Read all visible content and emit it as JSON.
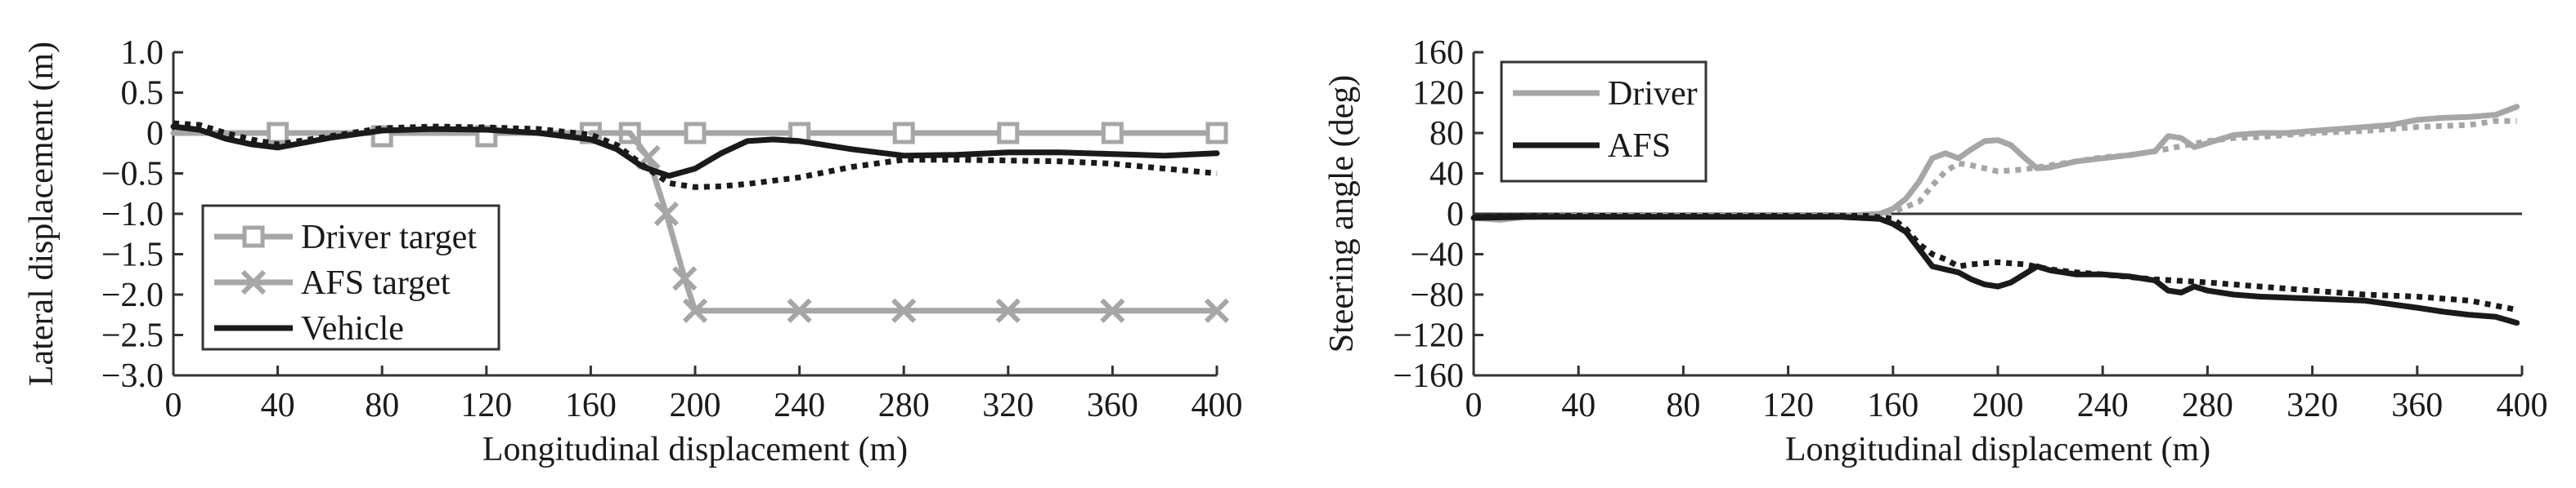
{
  "chart_data": [
    {
      "type": "line",
      "xlabel": "Longitudinal displacement (m)",
      "ylabel": "Lateral displacement (m)",
      "xlim": [
        0,
        400
      ],
      "ylim": [
        -3.0,
        1.0
      ],
      "xticks": [
        0,
        40,
        80,
        120,
        160,
        200,
        240,
        280,
        320,
        360,
        400
      ],
      "yticks": [
        1.0,
        0.5,
        0,
        -0.5,
        -1.0,
        -1.5,
        -2.0,
        -2.5,
        -3.0
      ],
      "ytick_labels": [
        "1.0",
        "0.5",
        "0",
        "−0.5",
        "−1.0",
        "−1.5",
        "−2.0",
        "−2.5",
        "−3.0"
      ],
      "grid": false,
      "legend_position": "bottom-left",
      "legend": [
        "Driver target",
        "AFS target",
        "Vehicle"
      ],
      "series": [
        {
          "name": "Driver target",
          "color": "#a6a6a6",
          "marker": "square",
          "x": [
            0,
            40,
            80,
            120,
            160,
            175,
            200,
            240,
            280,
            320,
            360,
            400
          ],
          "y": [
            0,
            0,
            0,
            0,
            0,
            0,
            0,
            0,
            0,
            0,
            0,
            0
          ],
          "marker_x": [
            40,
            80,
            120,
            160,
            175,
            200,
            240,
            280,
            320,
            360,
            400
          ],
          "marker_y": [
            0,
            -0.04,
            -0.04,
            0,
            0,
            0,
            0,
            0,
            0,
            0,
            0
          ]
        },
        {
          "name": "AFS target",
          "color": "#a6a6a6",
          "marker": "x",
          "x": [
            160,
            175,
            182,
            189,
            196,
            200,
            240,
            280,
            320,
            360,
            400
          ],
          "y": [
            0,
            0,
            -0.3,
            -1.0,
            -1.8,
            -2.2,
            -2.2,
            -2.2,
            -2.2,
            -2.2,
            -2.2
          ],
          "marker_x": [
            182,
            189,
            196,
            200,
            240,
            280,
            320,
            360,
            400
          ],
          "marker_y": [
            -0.3,
            -1.0,
            -1.8,
            -2.2,
            -2.2,
            -2.2,
            -2.2,
            -2.2,
            -2.2
          ]
        },
        {
          "name": "Vehicle",
          "color": "#1a1a1a",
          "x": [
            0,
            10,
            20,
            30,
            40,
            60,
            80,
            100,
            120,
            140,
            160,
            170,
            180,
            190,
            200,
            210,
            220,
            230,
            240,
            260,
            280,
            300,
            320,
            340,
            360,
            380,
            400
          ],
          "y": [
            0.08,
            0.04,
            -0.07,
            -0.14,
            -0.18,
            -0.06,
            0.03,
            0.05,
            0.04,
            0.0,
            -0.08,
            -0.2,
            -0.42,
            -0.53,
            -0.44,
            -0.25,
            -0.1,
            -0.08,
            -0.1,
            -0.2,
            -0.28,
            -0.27,
            -0.24,
            -0.24,
            -0.26,
            -0.28,
            -0.25
          ]
        },
        {
          "color": "#1a1a1a",
          "dash": "dotted",
          "x": [
            0,
            10,
            20,
            30,
            40,
            60,
            80,
            100,
            120,
            140,
            160,
            170,
            180,
            190,
            200,
            210,
            220,
            240,
            260,
            280,
            300,
            320,
            340,
            360,
            380,
            400
          ],
          "y": [
            0.12,
            0.1,
            0.0,
            -0.08,
            -0.14,
            -0.04,
            0.06,
            0.08,
            0.07,
            0.05,
            -0.02,
            -0.15,
            -0.4,
            -0.62,
            -0.67,
            -0.66,
            -0.63,
            -0.55,
            -0.42,
            -0.33,
            -0.33,
            -0.34,
            -0.35,
            -0.38,
            -0.44,
            -0.5
          ]
        }
      ]
    },
    {
      "type": "line",
      "xlabel": "Longitudinal displacement (m)",
      "ylabel": "Steering angle (deg)",
      "xlim": [
        0,
        400
      ],
      "ylim": [
        -160,
        160
      ],
      "xticks": [
        0,
        40,
        80,
        120,
        160,
        200,
        240,
        280,
        320,
        360,
        400
      ],
      "yticks": [
        160,
        120,
        80,
        40,
        0,
        -40,
        -80,
        -120,
        -160
      ],
      "ytick_labels": [
        "160",
        "120",
        "80",
        "40",
        "0",
        "−40",
        "−80",
        "−120",
        "−160"
      ],
      "grid": false,
      "legend_position": "top-left",
      "legend": [
        "Driver",
        "AFS"
      ],
      "series": [
        {
          "name": "Driver",
          "color": "#a6a6a6",
          "x": [
            0,
            10,
            20,
            40,
            80,
            120,
            140,
            155,
            160,
            165,
            170,
            175,
            180,
            185,
            190,
            195,
            200,
            205,
            210,
            215,
            220,
            230,
            240,
            250,
            260,
            265,
            270,
            275,
            280,
            290,
            300,
            310,
            320,
            330,
            340,
            350,
            360,
            370,
            380,
            390,
            398
          ],
          "y": [
            -4,
            -6,
            -3,
            -2,
            -2,
            -2,
            -2,
            0,
            5,
            15,
            32,
            55,
            60,
            55,
            64,
            72,
            73,
            68,
            56,
            45,
            46,
            52,
            55,
            58,
            62,
            77,
            75,
            66,
            70,
            78,
            80,
            80,
            82,
            84,
            86,
            88,
            93,
            95,
            96,
            98,
            106
          ]
        },
        {
          "color": "#a6a6a6",
          "dash": "dotted",
          "x": [
            0,
            20,
            40,
            80,
            120,
            150,
            160,
            170,
            175,
            180,
            185,
            190,
            200,
            210,
            220,
            230,
            240,
            250,
            260,
            270,
            280,
            290,
            300,
            320,
            340,
            360,
            380,
            390,
            398
          ],
          "y": [
            -3,
            -2,
            -2,
            -2,
            -2,
            -2,
            2,
            12,
            28,
            42,
            50,
            48,
            42,
            44,
            48,
            52,
            56,
            58,
            62,
            67,
            72,
            75,
            76,
            80,
            82,
            86,
            88,
            92,
            92
          ]
        },
        {
          "name": "AFS",
          "color": "#1a1a1a",
          "x": [
            0,
            20,
            40,
            80,
            120,
            140,
            155,
            160,
            165,
            170,
            175,
            180,
            185,
            190,
            195,
            200,
            205,
            210,
            215,
            220,
            230,
            240,
            250,
            260,
            265,
            270,
            275,
            280,
            290,
            300,
            320,
            340,
            360,
            370,
            380,
            390,
            398
          ],
          "y": [
            -4,
            -3,
            -3,
            -3,
            -3,
            -3,
            -5,
            -10,
            -18,
            -35,
            -52,
            -55,
            -58,
            -65,
            -70,
            -72,
            -68,
            -60,
            -52,
            -56,
            -60,
            -60,
            -62,
            -66,
            -76,
            -78,
            -72,
            -76,
            -80,
            -82,
            -84,
            -86,
            -93,
            -97,
            -100,
            -102,
            -108
          ]
        },
        {
          "color": "#1a1a1a",
          "dash": "dotted",
          "x": [
            0,
            20,
            40,
            80,
            120,
            150,
            160,
            165,
            170,
            175,
            180,
            185,
            190,
            200,
            210,
            220,
            230,
            240,
            260,
            280,
            300,
            320,
            340,
            360,
            380,
            398
          ],
          "y": [
            -3,
            -2,
            -2,
            -2,
            -2,
            -2,
            -5,
            -15,
            -30,
            -40,
            -45,
            -52,
            -50,
            -48,
            -50,
            -55,
            -58,
            -60,
            -65,
            -68,
            -72,
            -76,
            -80,
            -82,
            -86,
            -95
          ]
        }
      ]
    }
  ]
}
